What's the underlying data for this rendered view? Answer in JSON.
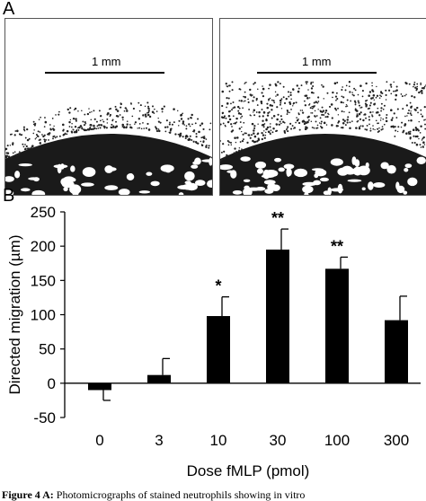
{
  "panel_a": {
    "letter": "A",
    "left_scale": "1 mm",
    "right_scale": "1 mm"
  },
  "panel_b": {
    "letter": "B"
  },
  "colors": {
    "bar": "#000000",
    "tissue": "#1a1a1a",
    "background": "#ffffff"
  },
  "chart_data": {
    "type": "bar",
    "categories": [
      "0",
      "3",
      "10",
      "30",
      "100",
      "300"
    ],
    "values": [
      -10,
      12,
      98,
      195,
      167,
      92
    ],
    "errors": [
      15,
      24,
      28,
      30,
      17,
      35
    ],
    "annotations": [
      "",
      "",
      "*",
      "**",
      "**",
      ""
    ],
    "xlabel": "Dose fMLP (pmol)",
    "ylabel": "Directed migration (µm)",
    "ylim": [
      -50,
      250
    ],
    "yticks": [
      -50,
      0,
      50,
      100,
      150,
      200,
      250
    ],
    "grid": false
  },
  "caption": {
    "prefix": "Figure 4 A:",
    "text": " Photomicrographs of stained neutrophils showing in vitro"
  }
}
